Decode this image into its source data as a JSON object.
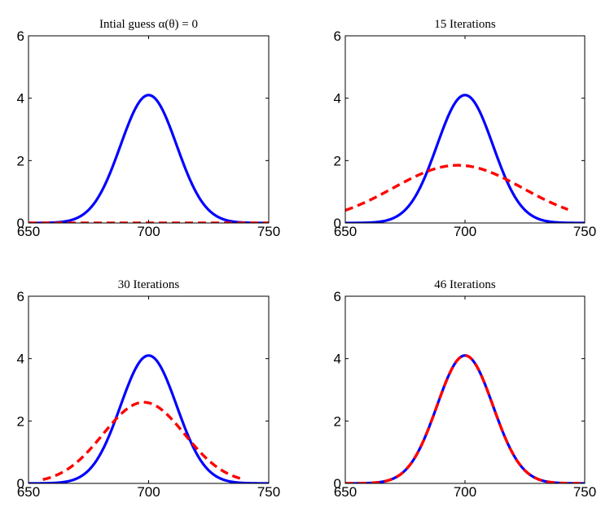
{
  "chart_data": [
    {
      "type": "line",
      "title": "Intial guess α(θ) = 0",
      "xlabel": "",
      "ylabel": "",
      "xlim": [
        650,
        750
      ],
      "ylim": [
        0,
        6
      ],
      "xticks": [
        650,
        700,
        750
      ],
      "yticks": [
        0,
        2,
        4,
        6
      ],
      "grid": false,
      "series": [
        {
          "type": "gaussian",
          "amplitude": 4.1,
          "center": 700,
          "sigma": 11.7,
          "x_range": [
            650,
            750
          ],
          "color": "#0000ff",
          "dash": "solid"
        },
        {
          "type": "gaussian",
          "amplitude": 0.0,
          "center": 700,
          "sigma": 11.7,
          "x_range": [
            650,
            750
          ],
          "color": "#ff0000",
          "dash": "dashed"
        }
      ]
    },
    {
      "type": "line",
      "title": "15 Iterations",
      "xlabel": "",
      "ylabel": "",
      "xlim": [
        650,
        750
      ],
      "ylim": [
        0,
        6
      ],
      "xticks": [
        650,
        700,
        750
      ],
      "yticks": [
        0,
        2,
        4,
        6
      ],
      "grid": false,
      "series": [
        {
          "type": "gaussian",
          "amplitude": 4.1,
          "center": 700,
          "sigma": 11.7,
          "x_range": [
            650,
            750
          ],
          "color": "#0000ff",
          "dash": "solid"
        },
        {
          "type": "gaussian",
          "amplitude": 1.85,
          "center": 697,
          "sigma": 27,
          "x_range": [
            650,
            743
          ],
          "color": "#ff0000",
          "dash": "dashed"
        }
      ]
    },
    {
      "type": "line",
      "title": "30 Iterations",
      "xlabel": "",
      "ylabel": "",
      "xlim": [
        650,
        750
      ],
      "ylim": [
        0,
        6
      ],
      "xticks": [
        650,
        700,
        750
      ],
      "yticks": [
        0,
        2,
        4,
        6
      ],
      "grid": false,
      "series": [
        {
          "type": "gaussian",
          "amplitude": 4.1,
          "center": 700,
          "sigma": 11.7,
          "x_range": [
            650,
            750
          ],
          "color": "#0000ff",
          "dash": "solid"
        },
        {
          "type": "gaussian",
          "amplitude": 2.6,
          "center": 698,
          "sigma": 17,
          "x_range": [
            656,
            740
          ],
          "color": "#ff0000",
          "dash": "dashed"
        }
      ]
    },
    {
      "type": "line",
      "title": "46 Iterations",
      "xlabel": "",
      "ylabel": "",
      "xlim": [
        650,
        750
      ],
      "ylim": [
        0,
        6
      ],
      "xticks": [
        650,
        700,
        750
      ],
      "yticks": [
        0,
        2,
        4,
        6
      ],
      "grid": false,
      "series": [
        {
          "type": "gaussian",
          "amplitude": 4.1,
          "center": 700,
          "sigma": 11.7,
          "x_range": [
            650,
            750
          ],
          "color": "#0000ff",
          "dash": "solid"
        },
        {
          "type": "gaussian",
          "amplitude": 4.1,
          "center": 700,
          "sigma": 11.7,
          "x_range": [
            650,
            750
          ],
          "color": "#ff0000",
          "dash": "dashed"
        }
      ]
    }
  ]
}
